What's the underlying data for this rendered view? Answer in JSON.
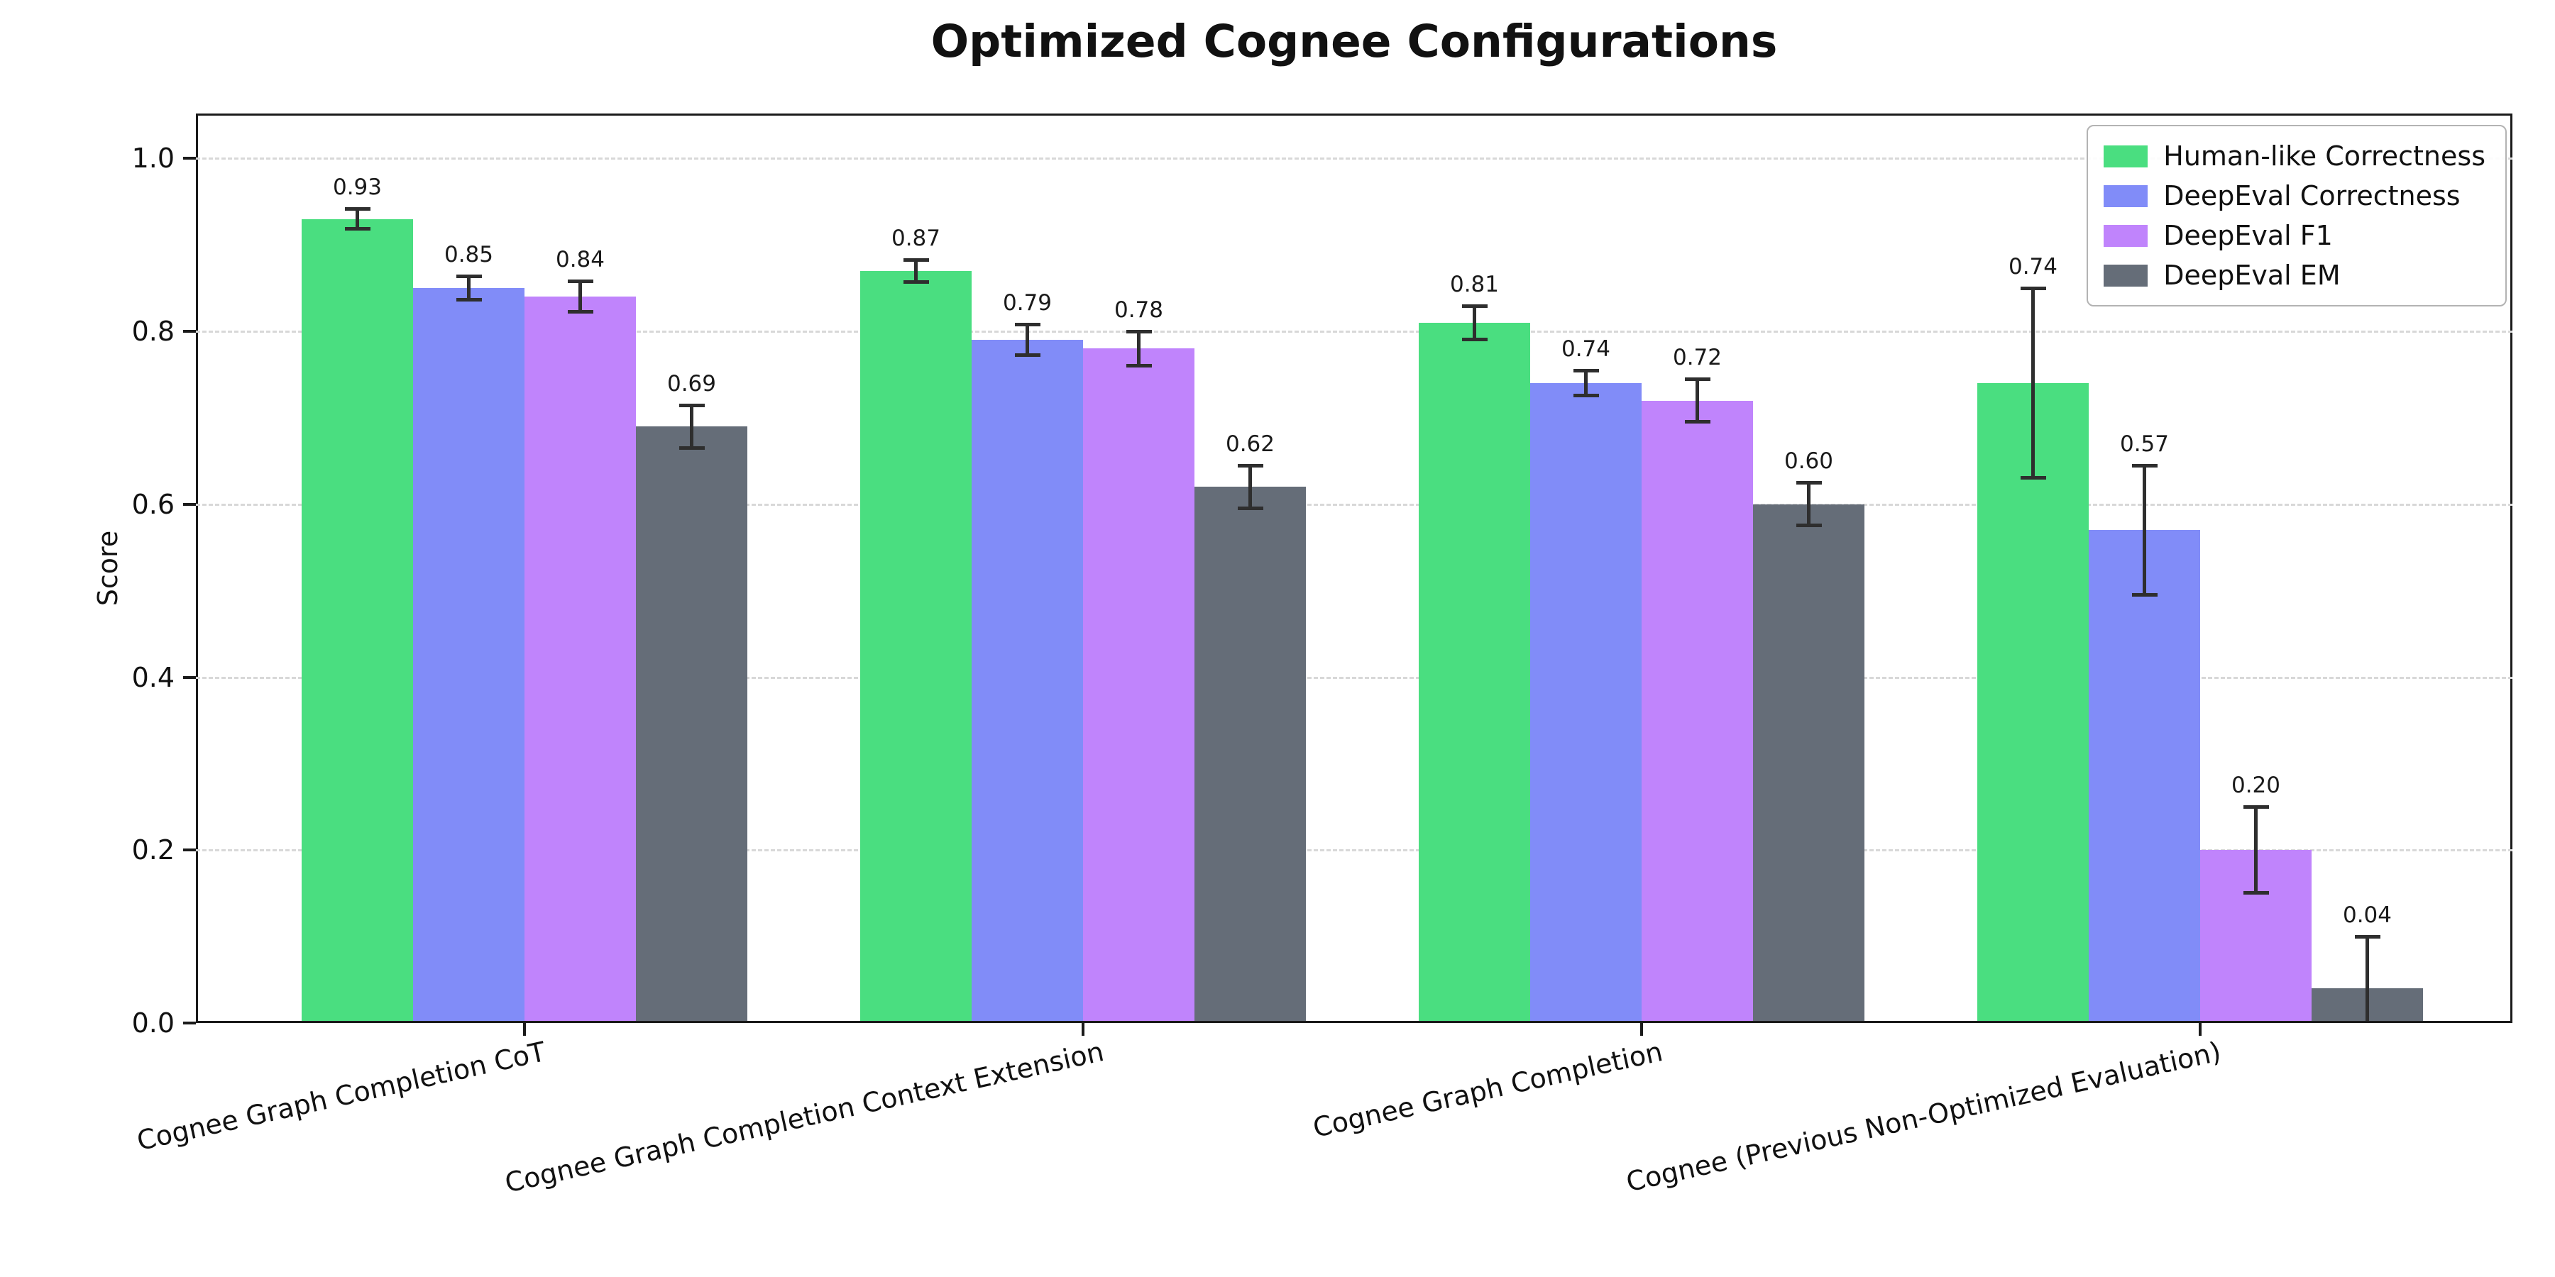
{
  "title": "Optimized Cognee Configurations",
  "chart_data": {
    "type": "bar",
    "title": "Optimized Cognee Configurations",
    "xlabel": "",
    "ylabel": "Score",
    "ylim": [
      0,
      1.052
    ],
    "yticks": [
      "0.0",
      "0.2",
      "0.4",
      "0.6",
      "0.8",
      "1.0"
    ],
    "grid": "horizontal dashed",
    "legend_position": "upper right",
    "error_bars": true,
    "categories": [
      "Cognee Graph Completion CoT",
      "Cognee Graph Completion Context Extension",
      "Cognee Graph Completion",
      "Cognee (Previous Non-Optimized Evaluation)"
    ],
    "series": [
      {
        "name": "Human-like Correctness",
        "color": "#4ade80",
        "values": [
          0.93,
          0.87,
          0.81,
          0.74
        ],
        "errors": [
          0.012,
          0.013,
          0.02,
          0.11
        ],
        "labels": [
          "0.93",
          "0.87",
          "0.81",
          "0.74"
        ]
      },
      {
        "name": "DeepEval Correctness",
        "color": "#818cf8",
        "values": [
          0.85,
          0.79,
          0.74,
          0.57
        ],
        "errors": [
          0.014,
          0.018,
          0.015,
          0.075
        ],
        "labels": [
          "0.85",
          "0.79",
          "0.74",
          "0.57"
        ]
      },
      {
        "name": "DeepEval F1",
        "color": "#c084fc",
        "values": [
          0.84,
          0.78,
          0.72,
          0.2
        ],
        "errors": [
          0.018,
          0.02,
          0.025,
          0.05
        ],
        "labels": [
          "0.84",
          "0.78",
          "0.72",
          "0.20"
        ]
      },
      {
        "name": "DeepEval EM",
        "color": "#656d78",
        "values": [
          0.69,
          0.62,
          0.6,
          0.04
        ],
        "errors": [
          0.025,
          0.025,
          0.025,
          0.06
        ],
        "labels": [
          "0.69",
          "0.62",
          "0.60",
          "0.04"
        ]
      }
    ]
  }
}
